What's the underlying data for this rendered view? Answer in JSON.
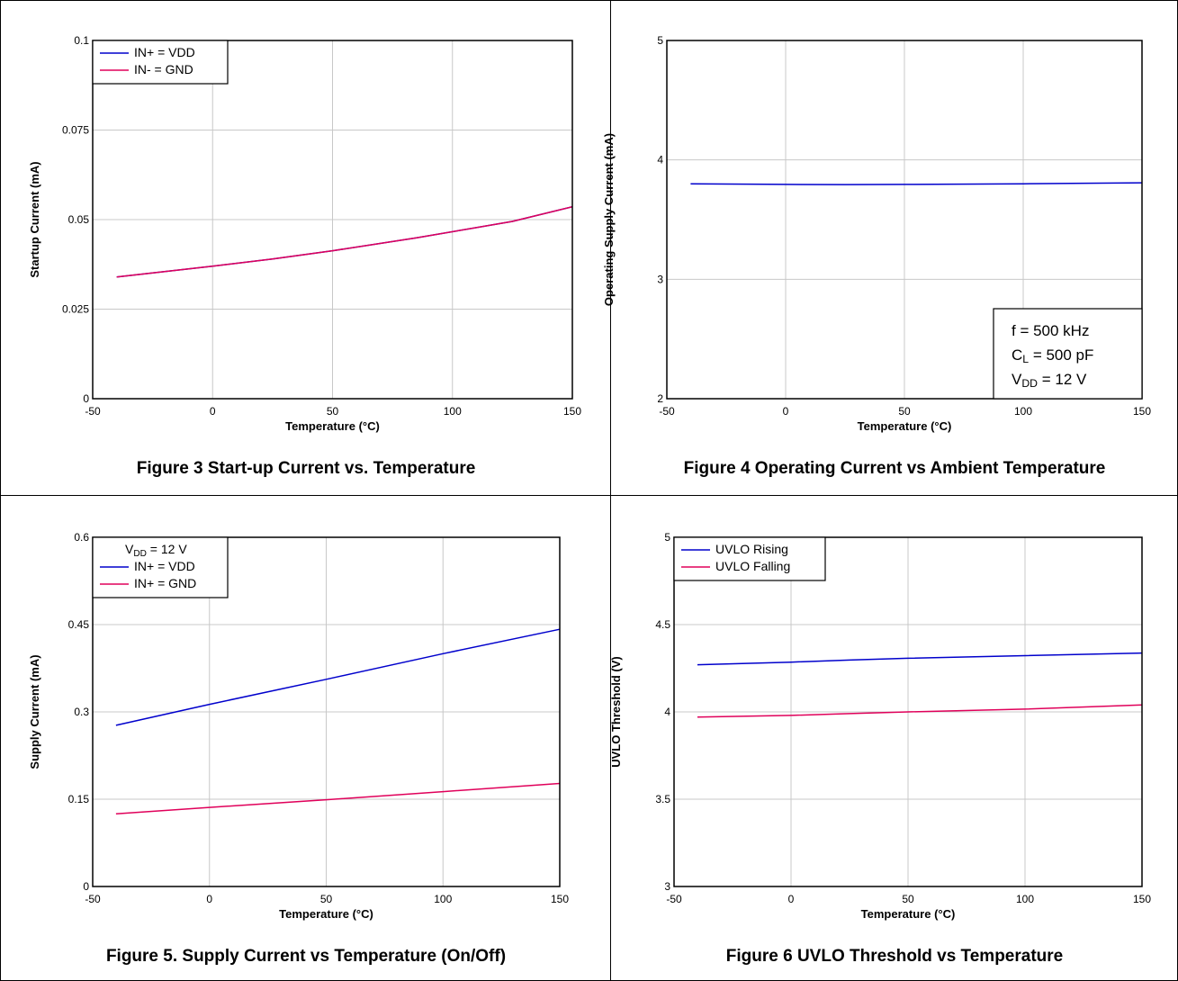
{
  "colors": {
    "blue": "#0000cc",
    "magenta": "#e0005a",
    "grid": "#c8c8c8",
    "frame": "#000000"
  },
  "chart_data": [
    {
      "type": "line",
      "caption": "Figure 3 Start-up Current vs. Temperature",
      "xlabel": "Temperature (°C)",
      "ylabel": "Startup Current (mA)",
      "xlim": [
        -50,
        150
      ],
      "ylim": [
        0,
        0.1
      ],
      "xticks": [
        -50,
        0,
        50,
        100,
        150
      ],
      "xtick_labels": [
        "-50",
        "0",
        "50",
        "100",
        "150"
      ],
      "yticks": [
        0,
        0.025,
        0.05,
        0.075,
        0.1
      ],
      "ytick_labels": [
        "0",
        "0.025",
        "0.05",
        "0.075",
        "0.1"
      ],
      "grid": true,
      "legend_position": "top-left",
      "legend_title": "",
      "series": [
        {
          "name": "IN+ = VDD",
          "color": "#0000cc",
          "x": [
            -40,
            0,
            25,
            50,
            85,
            125,
            150
          ],
          "y": [
            0.034,
            0.037,
            0.039,
            0.0413,
            0.0449,
            0.0495,
            0.0536
          ]
        },
        {
          "name": "IN- = GND",
          "color": "#e0005a",
          "x": [
            -40,
            0,
            25,
            50,
            85,
            125,
            150
          ],
          "y": [
            0.034,
            0.037,
            0.039,
            0.0413,
            0.0449,
            0.0495,
            0.0536
          ]
        }
      ],
      "annotation_lines": []
    },
    {
      "type": "line",
      "caption": "Figure 4 Operating Current vs Ambient Temperature",
      "xlabel": "Temperature (°C)",
      "ylabel": "Operating Supply Current (mA)",
      "xlim": [
        -50,
        150
      ],
      "ylim": [
        2,
        5
      ],
      "xticks": [
        -50,
        0,
        50,
        100,
        150
      ],
      "xtick_labels": [
        "-50",
        "0",
        "50",
        "100",
        "150"
      ],
      "yticks": [
        2,
        3,
        4,
        5
      ],
      "ytick_labels": [
        "2",
        "3",
        "4",
        "5"
      ],
      "grid": true,
      "legend_position": "",
      "legend_title": "",
      "series": [
        {
          "color": "#0000cc",
          "x": [
            -40,
            0,
            25,
            50,
            100,
            150
          ],
          "y": [
            3.8,
            3.795,
            3.793,
            3.795,
            3.8,
            3.808
          ]
        }
      ],
      "annotation_lines": [
        "f = 500 kHz",
        "CL = 500 pF",
        "VDD = 12 V"
      ]
    },
    {
      "type": "line",
      "caption": "Figure 5. Supply Current vs Temperature (On/Off)",
      "xlabel": "Temperature (°C)",
      "ylabel": "Supply Current (mA)",
      "xlim": [
        -50,
        150
      ],
      "ylim": [
        0,
        0.6
      ],
      "xticks": [
        -50,
        0,
        50,
        100,
        150
      ],
      "xtick_labels": [
        "-50",
        "0",
        "50",
        "100",
        "150"
      ],
      "yticks": [
        0,
        0.15,
        0.3,
        0.45,
        0.6
      ],
      "ytick_labels": [
        "0",
        "0.15",
        "0.3",
        "0.45",
        "0.6"
      ],
      "grid": true,
      "legend_position": "top-left",
      "legend_title": "VDD = 12 V",
      "series": [
        {
          "name": "IN+ = VDD",
          "color": "#0000cc",
          "x": [
            -40,
            0,
            50,
            100,
            150
          ],
          "y": [
            0.277,
            0.313,
            0.356,
            0.4,
            0.442
          ]
        },
        {
          "name": "IN+ = GND",
          "color": "#e0005a",
          "x": [
            -40,
            0,
            50,
            100,
            150
          ],
          "y": [
            0.125,
            0.136,
            0.149,
            0.163,
            0.177
          ]
        }
      ],
      "annotation_lines": []
    },
    {
      "type": "line",
      "caption": "Figure 6 UVLO Threshold vs Temperature",
      "xlabel": "Temperature (°C)",
      "ylabel": "UVLO Threshold (V)",
      "xlim": [
        -50,
        150
      ],
      "ylim": [
        3,
        5
      ],
      "xticks": [
        -50,
        0,
        50,
        100,
        150
      ],
      "xtick_labels": [
        "-50",
        "0",
        "50",
        "100",
        "150"
      ],
      "yticks": [
        3,
        3.5,
        4,
        4.5,
        5
      ],
      "ytick_labels": [
        "3",
        "3.5",
        "4",
        "4.5",
        "5"
      ],
      "grid": true,
      "legend_position": "top-left",
      "legend_title": "",
      "series": [
        {
          "name": "UVLO Rising",
          "color": "#0000cc",
          "x": [
            -40,
            0,
            25,
            50,
            100,
            150
          ],
          "y": [
            4.27,
            4.285,
            4.297,
            4.307,
            4.322,
            4.337
          ]
        },
        {
          "name": "UVLO Falling",
          "color": "#e0005a",
          "x": [
            -40,
            0,
            25,
            50,
            100,
            150
          ],
          "y": [
            3.97,
            3.98,
            3.99,
            4.0,
            4.016,
            4.04
          ]
        }
      ],
      "annotation_lines": []
    }
  ]
}
